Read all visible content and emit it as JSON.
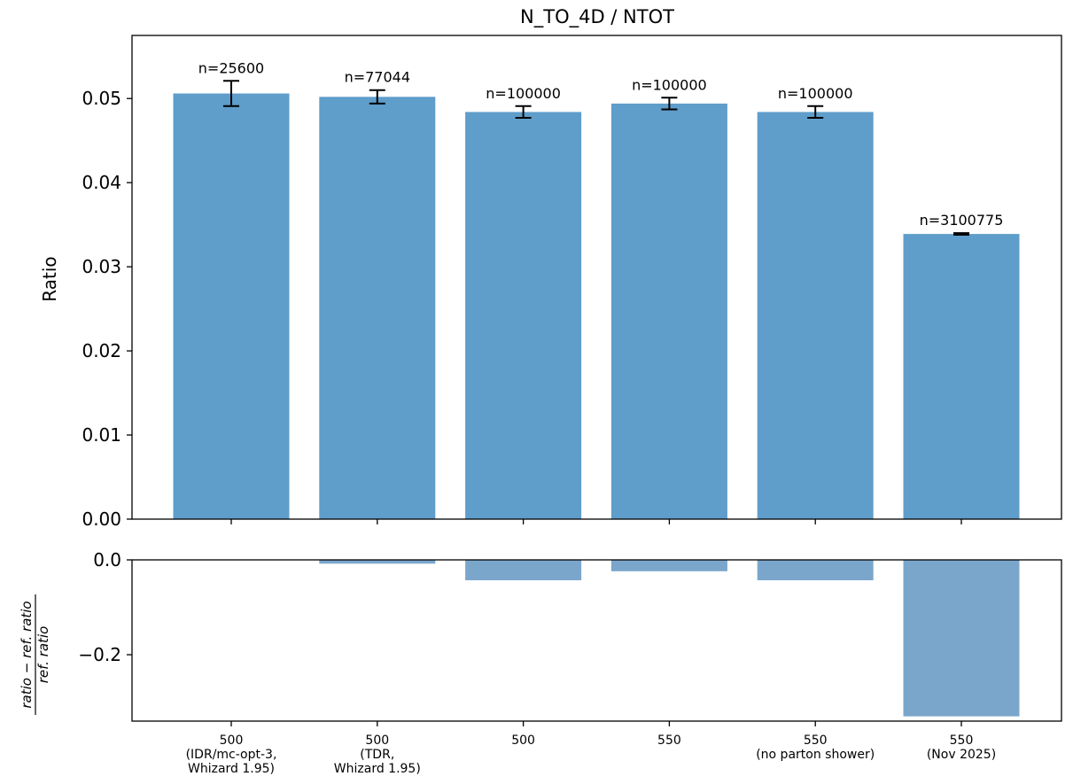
{
  "chart_data": {
    "type": "bar",
    "title": "N_TO_4D / NTOT",
    "categories": [
      "500\n(IDR/mc-opt-3,\nWhizard 1.95)",
      "500\n(TDR,\nWhizard 1.95)",
      "500",
      "550",
      "550\n(no parton shower)",
      "550\n(Nov 2025)"
    ],
    "main": {
      "ylabel": "Ratio",
      "ylim": [
        0,
        0.0575
      ],
      "yticks": [
        "0.00",
        "0.01",
        "0.02",
        "0.03",
        "0.04",
        "0.05"
      ],
      "ytick_values": [
        0,
        0.01,
        0.02,
        0.03,
        0.04,
        0.05
      ],
      "values": [
        0.0506,
        0.0502,
        0.0484,
        0.0494,
        0.0484,
        0.0339
      ],
      "errors": [
        0.0015,
        0.0008,
        0.0007,
        0.0007,
        0.0007,
        0.0001
      ],
      "annotations": [
        "n=25600",
        "n=77044",
        "n=100000",
        "n=100000",
        "n=100000",
        "n=3100775"
      ]
    },
    "ratio": {
      "ylabel_numerator": "ratio − ref. ratio",
      "ylabel_denominator": "ref. ratio",
      "ylim": [
        -0.34,
        0.0
      ],
      "yticks": [
        "0.0",
        "−0.2"
      ],
      "ytick_values": [
        0.0,
        -0.2
      ],
      "values": [
        0.0,
        -0.008,
        -0.043,
        -0.024,
        -0.043,
        -0.33
      ]
    },
    "colors": {
      "main_bar": "#5f9dca",
      "ratio_bar": "#7ba6cb"
    }
  }
}
